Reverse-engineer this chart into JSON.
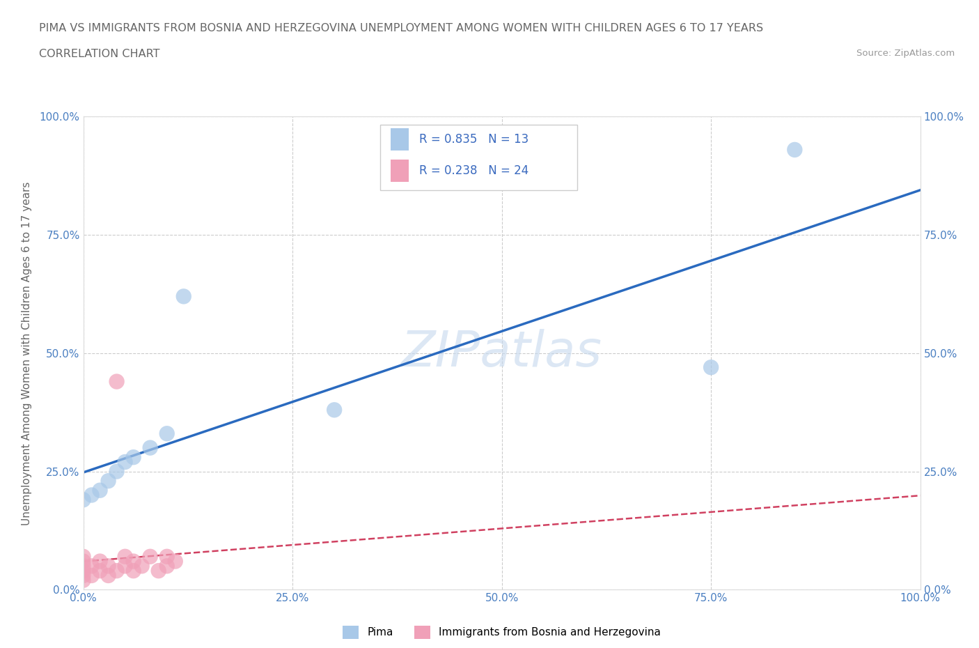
{
  "title_line1": "PIMA VS IMMIGRANTS FROM BOSNIA AND HERZEGOVINA UNEMPLOYMENT AMONG WOMEN WITH CHILDREN AGES 6 TO 17 YEARS",
  "title_line2": "CORRELATION CHART",
  "source_text": "Source: ZipAtlas.com",
  "ylabel": "Unemployment Among Women with Children Ages 6 to 17 years",
  "xlim": [
    0.0,
    1.0
  ],
  "ylim": [
    0.0,
    1.0
  ],
  "xtick_labels": [
    "0.0%",
    "25.0%",
    "50.0%",
    "75.0%",
    "100.0%"
  ],
  "xtick_positions": [
    0.0,
    0.25,
    0.5,
    0.75,
    1.0
  ],
  "ytick_labels": [
    "0.0%",
    "25.0%",
    "50.0%",
    "75.0%",
    "100.0%"
  ],
  "ytick_positions": [
    0.0,
    0.25,
    0.5,
    0.75,
    1.0
  ],
  "watermark": "ZIPatlas",
  "pima_color": "#a8c8e8",
  "bosnia_color": "#f0a0b8",
  "pima_R": 0.835,
  "pima_N": 13,
  "bosnia_R": 0.238,
  "bosnia_N": 24,
  "pima_line_color": "#2a6abf",
  "bosnia_line_color": "#d04060",
  "legend_r_color": "#3a6abf",
  "pima_scatter_x": [
    0.0,
    0.01,
    0.02,
    0.03,
    0.04,
    0.05,
    0.06,
    0.08,
    0.1,
    0.12,
    0.75,
    0.85,
    0.3
  ],
  "pima_scatter_y": [
    0.19,
    0.2,
    0.21,
    0.23,
    0.25,
    0.27,
    0.28,
    0.3,
    0.33,
    0.62,
    0.47,
    0.93,
    0.38
  ],
  "bosnia_scatter_x": [
    0.0,
    0.0,
    0.0,
    0.0,
    0.0,
    0.0,
    0.01,
    0.01,
    0.02,
    0.02,
    0.03,
    0.03,
    0.04,
    0.04,
    0.05,
    0.05,
    0.06,
    0.06,
    0.07,
    0.08,
    0.09,
    0.1,
    0.1,
    0.11
  ],
  "bosnia_scatter_y": [
    0.02,
    0.03,
    0.04,
    0.05,
    0.06,
    0.07,
    0.03,
    0.05,
    0.04,
    0.06,
    0.03,
    0.05,
    0.04,
    0.44,
    0.05,
    0.07,
    0.04,
    0.06,
    0.05,
    0.07,
    0.04,
    0.05,
    0.07,
    0.06
  ],
  "grid_color": "#cccccc",
  "background_color": "#ffffff",
  "title_color": "#666666",
  "axis_tick_color": "#4a7fc1"
}
